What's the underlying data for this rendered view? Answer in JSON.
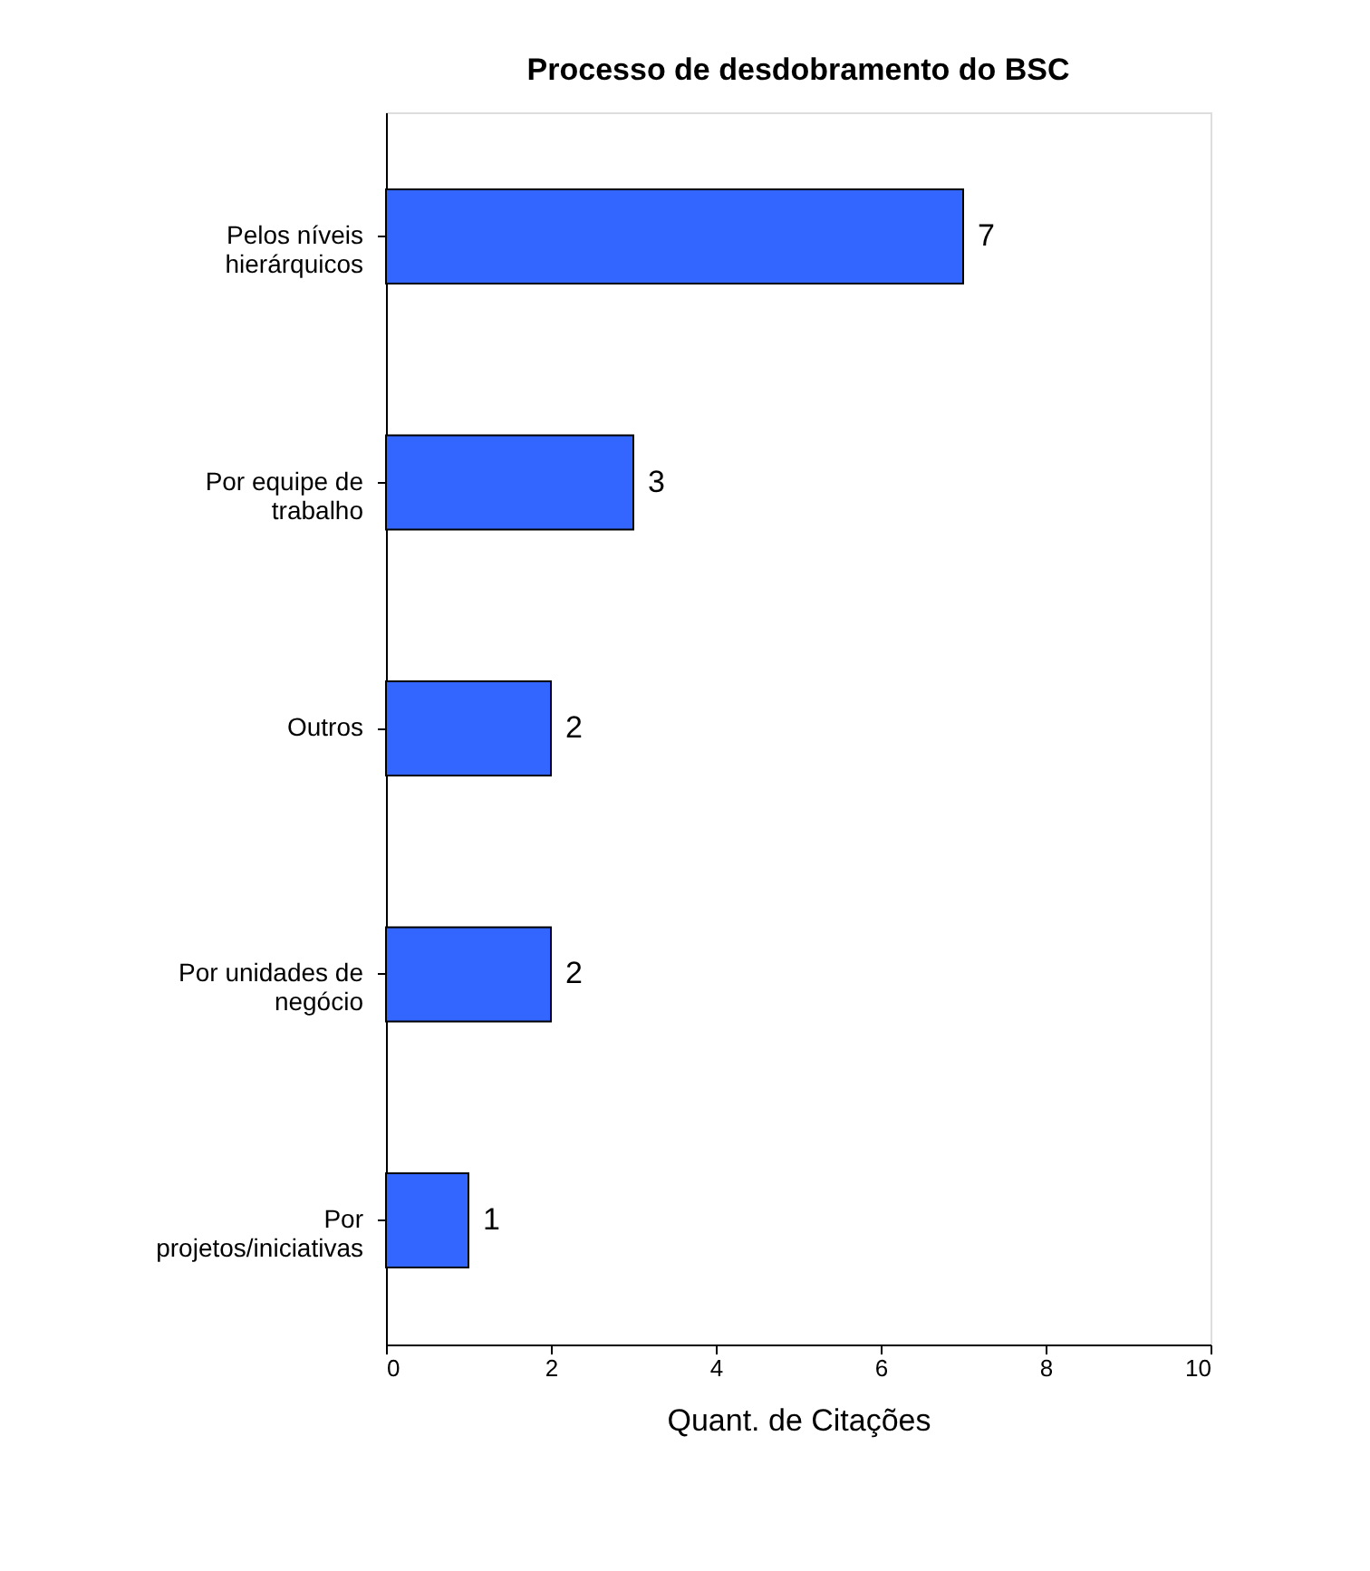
{
  "chart_data": {
    "type": "bar",
    "orientation": "horizontal",
    "title": "Processo de desdobramento do BSC",
    "categories": [
      "Pelos níveis hierárquicos",
      "Por equipe de trabalho",
      "Outros",
      "Por unidades de negócio",
      "Por projetos/iniciativas"
    ],
    "values": [
      7,
      3,
      2,
      2,
      1
    ],
    "color": "#3366ff",
    "xlim": [
      0,
      10
    ],
    "xticks": [
      0,
      2,
      4,
      6,
      8,
      10
    ],
    "xlabel": "Quant. de Citações",
    "data_labels": true,
    "grid": false
  }
}
